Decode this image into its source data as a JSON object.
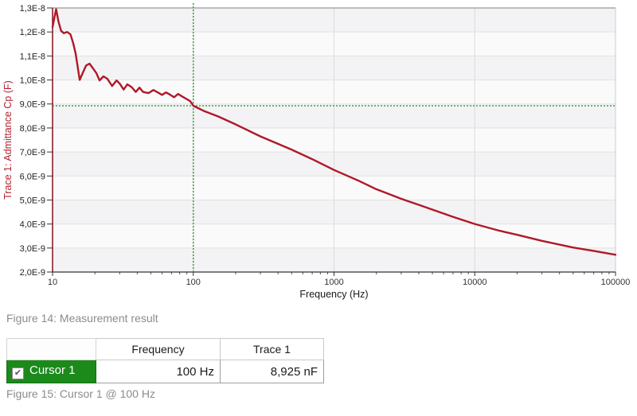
{
  "chart_data": {
    "type": "line",
    "title": "",
    "xlabel": "Frequency (Hz)",
    "ylabel": "Trace 1: Admittance Cp (F)",
    "x_scale": "log",
    "grid": true,
    "legend": "none",
    "xlim": [
      10,
      100000
    ],
    "ylim_nF": [
      2.0,
      13.0
    ],
    "x_ticks": [
      {
        "label": "10",
        "value": 10
      },
      {
        "label": "100",
        "value": 100
      },
      {
        "label": "1000",
        "value": 1000
      },
      {
        "label": "10000",
        "value": 10000
      },
      {
        "label": "100000",
        "value": 100000
      }
    ],
    "y_ticks": [
      {
        "label": "1,3E-8",
        "value_nF": 13
      },
      {
        "label": "1,2E-8",
        "value_nF": 12
      },
      {
        "label": "1,1E-8",
        "value_nF": 11
      },
      {
        "label": "1,0E-8",
        "value_nF": 10
      },
      {
        "label": "9,0E-9",
        "value_nF": 9
      },
      {
        "label": "8,0E-9",
        "value_nF": 8
      },
      {
        "label": "7,0E-9",
        "value_nF": 7
      },
      {
        "label": "6,0E-9",
        "value_nF": 6
      },
      {
        "label": "5,0E-9",
        "value_nF": 5
      },
      {
        "label": "4,0E-9",
        "value_nF": 4
      },
      {
        "label": "3,0E-9",
        "value_nF": 3
      },
      {
        "label": "2,0E-9",
        "value_nF": 2
      }
    ],
    "series": [
      {
        "name": "Trace 1",
        "color": "#b01828",
        "points_hz_nF": [
          [
            10,
            12.2
          ],
          [
            10.3,
            12.6
          ],
          [
            10.6,
            12.95
          ],
          [
            11,
            12.45
          ],
          [
            11.5,
            12.05
          ],
          [
            12,
            11.95
          ],
          [
            12.7,
            12.0
          ],
          [
            13.4,
            11.9
          ],
          [
            14,
            11.55
          ],
          [
            14.6,
            11.1
          ],
          [
            15.6,
            10.0
          ],
          [
            16.4,
            10.3
          ],
          [
            17.3,
            10.6
          ],
          [
            18.3,
            10.68
          ],
          [
            19.3,
            10.5
          ],
          [
            20.5,
            10.28
          ],
          [
            21.6,
            9.98
          ],
          [
            23,
            10.15
          ],
          [
            24.5,
            10.05
          ],
          [
            26.5,
            9.75
          ],
          [
            28.5,
            9.98
          ],
          [
            30,
            9.85
          ],
          [
            32,
            9.6
          ],
          [
            34,
            9.82
          ],
          [
            36.5,
            9.7
          ],
          [
            39,
            9.5
          ],
          [
            41.5,
            9.68
          ],
          [
            44,
            9.5
          ],
          [
            48,
            9.45
          ],
          [
            52,
            9.58
          ],
          [
            56,
            9.48
          ],
          [
            60,
            9.38
          ],
          [
            64,
            9.48
          ],
          [
            68,
            9.4
          ],
          [
            73,
            9.28
          ],
          [
            78,
            9.42
          ],
          [
            84,
            9.3
          ],
          [
            90,
            9.2
          ],
          [
            95,
            9.12
          ],
          [
            100,
            8.925
          ],
          [
            120,
            8.7
          ],
          [
            150,
            8.48
          ],
          [
            200,
            8.15
          ],
          [
            300,
            7.65
          ],
          [
            500,
            7.1
          ],
          [
            700,
            6.7
          ],
          [
            1000,
            6.25
          ],
          [
            1500,
            5.8
          ],
          [
            2000,
            5.45
          ],
          [
            3000,
            5.05
          ],
          [
            4000,
            4.8
          ],
          [
            5000,
            4.6
          ],
          [
            7000,
            4.3
          ],
          [
            10000,
            4.0
          ],
          [
            15000,
            3.72
          ],
          [
            20000,
            3.55
          ],
          [
            30000,
            3.3
          ],
          [
            50000,
            3.02
          ],
          [
            70000,
            2.88
          ],
          [
            100000,
            2.72
          ]
        ]
      }
    ],
    "cursor": {
      "name": "Cursor 1",
      "freq_hz": 100,
      "value_nF": 8.925,
      "color": "#3aa13a"
    },
    "colors": {
      "axis_left_red": "#8e1b28",
      "ylabel_red": "#b42032",
      "axis_bottom": "#333333",
      "band_dark": "#f3f3f5",
      "band_light": "#fafafb",
      "gridline": "#e2e2e2",
      "v_gridline": "#dcdcdc",
      "top_border": "#a8a8a8",
      "right_border": "#cccccc",
      "tick_text": "#333333"
    }
  },
  "figure14_caption": "Figure 14: Measurement result",
  "cursor_table": {
    "headers": [
      "",
      "Frequency",
      "Trace 1"
    ],
    "row_green": "#1b8a1b",
    "check_glyph": "✔",
    "rows": [
      {
        "label": "Cursor 1",
        "checked": true,
        "frequency": "100 Hz",
        "trace1": "8,925 nF"
      }
    ]
  },
  "figure15_caption": "Figure 15: Cursor 1 @ 100 Hz"
}
